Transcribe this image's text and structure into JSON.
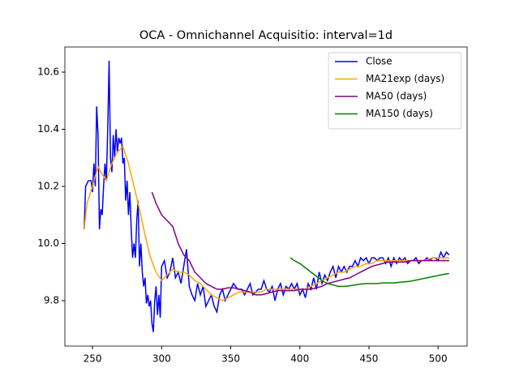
{
  "chart_data": {
    "type": "line",
    "title": "OCA - Omnichannel Acquisitio: interval=1d",
    "xlim": [
      230,
      521
    ],
    "ylim": [
      9.641,
      10.688
    ],
    "xticks": [
      250,
      300,
      350,
      400,
      450,
      500
    ],
    "yticks": [
      9.8,
      {
        "value": 10,
        "label": "10.0"
      },
      10.2,
      10.4,
      10.6
    ],
    "legend": "upper right",
    "series": [
      {
        "name": "Close",
        "color": "#0000ff",
        "x": [
          244,
          245,
          247,
          249,
          250,
          251,
          252,
          253,
          254,
          255,
          256,
          257,
          258,
          259,
          260,
          261,
          262,
          263,
          264,
          265,
          266,
          267,
          268,
          269,
          270,
          271,
          272,
          273,
          274,
          275,
          276,
          277,
          278,
          279,
          280,
          281,
          282,
          283,
          284,
          285,
          286,
          287,
          288,
          289,
          290,
          291,
          292,
          293,
          294,
          295,
          296,
          297,
          298,
          299,
          300,
          302,
          304,
          306,
          308,
          310,
          312,
          314,
          316,
          318,
          320,
          322,
          324,
          326,
          328,
          330,
          332,
          334,
          336,
          338,
          340,
          342,
          344,
          346,
          348,
          350,
          352,
          355,
          358,
          360,
          362,
          364,
          366,
          368,
          370,
          372,
          374,
          376,
          378,
          380,
          382,
          384,
          386,
          388,
          390,
          392,
          394,
          396,
          398,
          400,
          402,
          404,
          406,
          408,
          410,
          412,
          414,
          416,
          418,
          420,
          422,
          424,
          426,
          428,
          430,
          432,
          434,
          436,
          438,
          440,
          442,
          444,
          446,
          448,
          450,
          452,
          454,
          456,
          458,
          460,
          462,
          464,
          466,
          468,
          470,
          472,
          474,
          476,
          478,
          480,
          482,
          484,
          486,
          488,
          490,
          492,
          494,
          496,
          498,
          500,
          502,
          504,
          506,
          508
        ],
        "values": [
          10.05,
          10.2,
          10.22,
          10.22,
          10.18,
          10.28,
          10.2,
          10.48,
          10.38,
          10.05,
          10.12,
          10.1,
          10.2,
          10.28,
          10.22,
          10.4,
          10.64,
          10.3,
          10.25,
          10.38,
          10.3,
          10.4,
          10.32,
          10.37,
          10.35,
          10.37,
          10.28,
          10.3,
          10.15,
          10.22,
          10.1,
          10.18,
          10.05,
          9.95,
          10.0,
          9.95,
          10.08,
          10.15,
          9.92,
          10.0,
          9.9,
          9.85,
          9.88,
          9.79,
          9.82,
          9.78,
          9.8,
          9.72,
          9.69,
          9.8,
          9.85,
          9.75,
          9.82,
          9.74,
          9.92,
          9.94,
          9.88,
          9.9,
          9.95,
          9.88,
          9.9,
          9.86,
          9.92,
          9.98,
          9.85,
          9.82,
          9.8,
          9.86,
          9.82,
          9.85,
          9.78,
          9.8,
          9.82,
          9.78,
          9.76,
          9.82,
          9.84,
          9.8,
          9.82,
          9.84,
          9.86,
          9.84,
          9.84,
          9.82,
          9.84,
          9.86,
          9.82,
          9.83,
          9.84,
          9.84,
          9.87,
          9.84,
          9.83,
          9.85,
          9.8,
          9.84,
          9.86,
          9.82,
          9.85,
          9.84,
          9.86,
          9.84,
          9.86,
          9.82,
          9.84,
          9.81,
          9.86,
          9.84,
          9.88,
          9.84,
          9.9,
          9.86,
          9.89,
          9.87,
          9.9,
          9.92,
          9.88,
          9.92,
          9.9,
          9.92,
          9.9,
          9.92,
          9.92,
          9.94,
          9.92,
          9.95,
          9.94,
          9.95,
          9.93,
          9.95,
          9.95,
          9.94,
          9.95,
          9.95,
          9.93,
          9.95,
          9.92,
          9.95,
          9.93,
          9.95,
          9.94,
          9.95,
          9.93,
          9.94,
          9.94,
          9.95,
          9.93,
          9.94,
          9.94,
          9.95,
          9.94,
          9.95,
          9.95,
          9.94,
          9.97,
          9.95,
          9.97,
          9.96
        ]
      },
      {
        "name": "MA21exp (days)",
        "color": "#ffa500",
        "x": [
          244,
          246,
          250,
          254,
          256,
          260,
          264,
          268,
          272,
          276,
          280,
          284,
          288,
          292,
          296,
          300,
          304,
          308,
          312,
          316,
          320,
          324,
          328,
          332,
          336,
          340,
          344,
          348,
          352,
          356,
          360,
          364,
          368,
          372,
          376,
          380,
          384,
          388,
          392,
          396,
          400,
          404,
          408,
          412,
          416,
          420,
          424,
          428,
          432,
          436,
          440,
          444,
          448,
          452,
          456,
          460,
          464,
          468,
          472,
          476,
          480,
          484,
          490,
          496,
          502,
          508
        ],
        "values": [
          10.05,
          10.14,
          10.2,
          10.27,
          10.25,
          10.22,
          10.28,
          10.32,
          10.34,
          10.28,
          10.2,
          10.12,
          10.03,
          9.95,
          9.9,
          9.87,
          9.89,
          9.91,
          9.9,
          9.9,
          9.89,
          9.87,
          9.86,
          9.84,
          9.82,
          9.81,
          9.8,
          9.81,
          9.82,
          9.83,
          9.83,
          9.83,
          9.83,
          9.83,
          9.84,
          9.84,
          9.84,
          9.84,
          9.84,
          9.84,
          9.84,
          9.84,
          9.85,
          9.86,
          9.87,
          9.88,
          9.89,
          9.9,
          9.9,
          9.91,
          9.92,
          9.92,
          9.93,
          9.93,
          9.94,
          9.94,
          9.94,
          9.94,
          9.94,
          9.94,
          9.94,
          9.94,
          9.94,
          9.95,
          9.95,
          9.95
        ]
      },
      {
        "name": "MA50 (days)",
        "color": "#800080",
        "x": [
          293,
          296,
          300,
          304,
          308,
          312,
          316,
          320,
          324,
          328,
          332,
          336,
          340,
          344,
          348,
          352,
          356,
          360,
          364,
          368,
          372,
          376,
          380,
          384,
          388,
          392,
          396,
          400,
          404,
          408,
          412,
          416,
          420,
          424,
          428,
          432,
          436,
          440,
          444,
          448,
          452,
          456,
          460,
          464,
          468,
          472,
          476,
          480,
          484,
          490,
          496,
          502,
          508
        ],
        "values": [
          10.18,
          10.14,
          10.1,
          10.08,
          10.06,
          10.0,
          9.96,
          9.94,
          9.9,
          9.88,
          9.86,
          9.85,
          9.84,
          9.84,
          9.845,
          9.845,
          9.84,
          9.835,
          9.83,
          9.82,
          9.82,
          9.825,
          9.83,
          9.835,
          9.835,
          9.835,
          9.835,
          9.84,
          9.84,
          9.84,
          9.845,
          9.85,
          9.86,
          9.865,
          9.87,
          9.875,
          9.88,
          9.89,
          9.9,
          9.91,
          9.92,
          9.925,
          9.93,
          9.935,
          9.935,
          9.935,
          9.935,
          9.94,
          9.94,
          9.94,
          9.94,
          9.94,
          9.94
        ]
      },
      {
        "name": "MA150 (days)",
        "color": "#008000",
        "x": [
          393,
          396,
          400,
          404,
          408,
          412,
          416,
          420,
          424,
          428,
          432,
          436,
          440,
          444,
          448,
          452,
          456,
          460,
          464,
          468,
          472,
          476,
          480,
          484,
          488,
          492,
          496,
          500,
          504,
          508
        ],
        "values": [
          9.95,
          9.94,
          9.93,
          9.915,
          9.9,
          9.885,
          9.87,
          9.86,
          9.855,
          9.85,
          9.85,
          9.852,
          9.855,
          9.858,
          9.86,
          9.86,
          9.86,
          9.862,
          9.862,
          9.862,
          9.864,
          9.866,
          9.868,
          9.872,
          9.876,
          9.88,
          9.884,
          9.888,
          9.892,
          9.895
        ]
      }
    ]
  }
}
